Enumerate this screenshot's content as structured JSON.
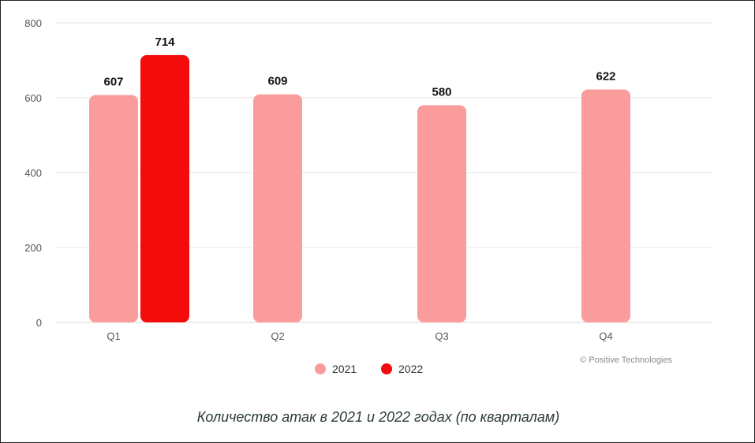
{
  "chart_data": {
    "type": "bar",
    "categories": [
      "Q1",
      "Q2",
      "Q3",
      "Q4"
    ],
    "series": [
      {
        "name": "2021",
        "values": [
          607,
          609,
          580,
          622
        ],
        "color": "#fb9c9c"
      },
      {
        "name": "2022",
        "values": [
          714,
          null,
          null,
          null
        ],
        "color": "#f40b0b"
      }
    ],
    "ylim": [
      0,
      800
    ],
    "yticks": [
      0,
      200,
      400,
      600,
      800
    ],
    "grid": true,
    "legend_position": "bottom"
  },
  "watermark": "© Positive Technologies",
  "caption": "Количество атак в 2021 и 2022 годах (по кварталам)"
}
